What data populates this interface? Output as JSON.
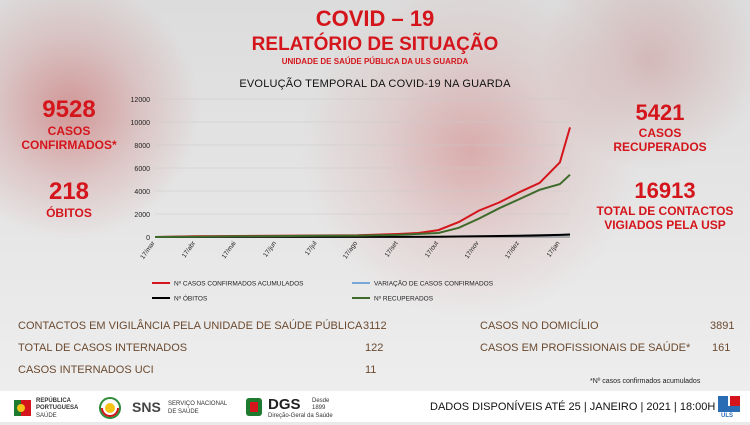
{
  "header": {
    "title": "COVID – 19",
    "subtitle": "RELATÓRIO DE SITUAÇÃO",
    "unit": "UNIDADE DE SAÚDE PÚBLICA DA ULS GUARDA"
  },
  "stats": {
    "confirmed_value": "9528",
    "confirmed_label_1": "CASOS",
    "confirmed_label_2": "CONFIRMADOS*",
    "deaths_value": "218",
    "deaths_label": "ÓBITOS",
    "recovered_value": "5421",
    "recovered_label_1": "CASOS",
    "recovered_label_2": "RECUPERADOS",
    "contacts_value": "16913",
    "contacts_label_1": "TOTAL DE CONTACTOS",
    "contacts_label_2": "VIGIADOS PELA USP"
  },
  "table_left": [
    {
      "label": "CONTACTOS EM VIGILÂNCIA PELA UNIDADE DE SAÚDE PÚBLICA",
      "value": "3112"
    },
    {
      "label": "TOTAL DE CASOS INTERNADOS",
      "value": "122"
    },
    {
      "label": "CASOS INTERNADOS UCI",
      "value": "11"
    }
  ],
  "table_right": [
    {
      "label": "CASOS NO DOMICÍLIO",
      "value": "3891"
    },
    {
      "label": "CASOS EM PROFISSIONAIS DE SAÚDE*",
      "value": "161"
    }
  ],
  "footnote": "*Nº casos confirmados acumulados",
  "footer": {
    "availability": "DADOS DISPONÍVEIS ATÉ 25 | JANEIRO | 2021 | 18:00H",
    "logo_republica_1": "REPÚBLICA",
    "logo_republica_2": "PORTUGUESA",
    "logo_republica_3": "SAÚDE",
    "logo_sns": "SNS",
    "logo_sns_sub_1": "SERVIÇO NACIONAL",
    "logo_sns_sub_2": "DE SAÚDE",
    "logo_dgs": "DGS",
    "logo_dgs_sub": "Direção-Geral da Saúde",
    "logo_dgs_since_1": "Desde",
    "logo_dgs_since_2": "1899",
    "logo_uls": "ULS"
  },
  "colors": {
    "confirmed": "#d4151c",
    "variation": "#7aa7d9",
    "deaths": "#000000",
    "recovered": "#3e6b2c"
  },
  "chart_data": {
    "type": "line",
    "title": "EVOLUÇÃO TEMPORAL DA COVID-19 NA GUARDA",
    "x": [
      "17/mar",
      "17/abr",
      "17/mai",
      "17/jun",
      "17/jul",
      "17/ago",
      "17/set",
      "17/out",
      "17/nov",
      "17/dez",
      "17/jan"
    ],
    "x_index": [
      0,
      1,
      2,
      3,
      4,
      5,
      6,
      7,
      8,
      9,
      10,
      10.25
    ],
    "yticks": [
      "0",
      "2000",
      "4000",
      "6000",
      "8000",
      "10000",
      "12000"
    ],
    "ylim": [
      0,
      12000
    ],
    "legend_position": "bottom",
    "grid": true,
    "series": [
      {
        "name": "Nº CASOS CONFIRMADOS ACUMULADOS",
        "color": "#d4151c",
        "points": [
          [
            0,
            0
          ],
          [
            1,
            60
          ],
          [
            2,
            90
          ],
          [
            3,
            110
          ],
          [
            4,
            130
          ],
          [
            5,
            160
          ],
          [
            6,
            260
          ],
          [
            6.5,
            350
          ],
          [
            7,
            600
          ],
          [
            7.5,
            1300
          ],
          [
            8,
            2300
          ],
          [
            8.5,
            3000
          ],
          [
            9,
            3900
          ],
          [
            9.5,
            4700
          ],
          [
            10,
            6500
          ],
          [
            10.25,
            9528
          ]
        ]
      },
      {
        "name": "VARIAÇÃO DE CASOS CONFIRMADOS",
        "color": "#7aa7d9",
        "points": [
          [
            0,
            0
          ],
          [
            7,
            10
          ],
          [
            8,
            40
          ],
          [
            9,
            70
          ],
          [
            10,
            120
          ],
          [
            10.25,
            160
          ]
        ]
      },
      {
        "name": "Nº ÓBITOS",
        "color": "#000000",
        "points": [
          [
            0,
            0
          ],
          [
            2,
            5
          ],
          [
            6,
            10
          ],
          [
            7,
            25
          ],
          [
            8,
            60
          ],
          [
            9,
            110
          ],
          [
            10,
            180
          ],
          [
            10.25,
            218
          ]
        ]
      },
      {
        "name": "Nº RECUPERADOS",
        "color": "#3e6b2c",
        "points": [
          [
            0,
            0
          ],
          [
            1,
            20
          ],
          [
            2,
            60
          ],
          [
            3,
            80
          ],
          [
            4,
            100
          ],
          [
            5,
            120
          ],
          [
            6,
            180
          ],
          [
            7,
            350
          ],
          [
            7.5,
            800
          ],
          [
            8,
            1600
          ],
          [
            8.5,
            2500
          ],
          [
            9,
            3300
          ],
          [
            9.5,
            4100
          ],
          [
            10,
            4600
          ],
          [
            10.25,
            5421
          ]
        ]
      }
    ]
  }
}
